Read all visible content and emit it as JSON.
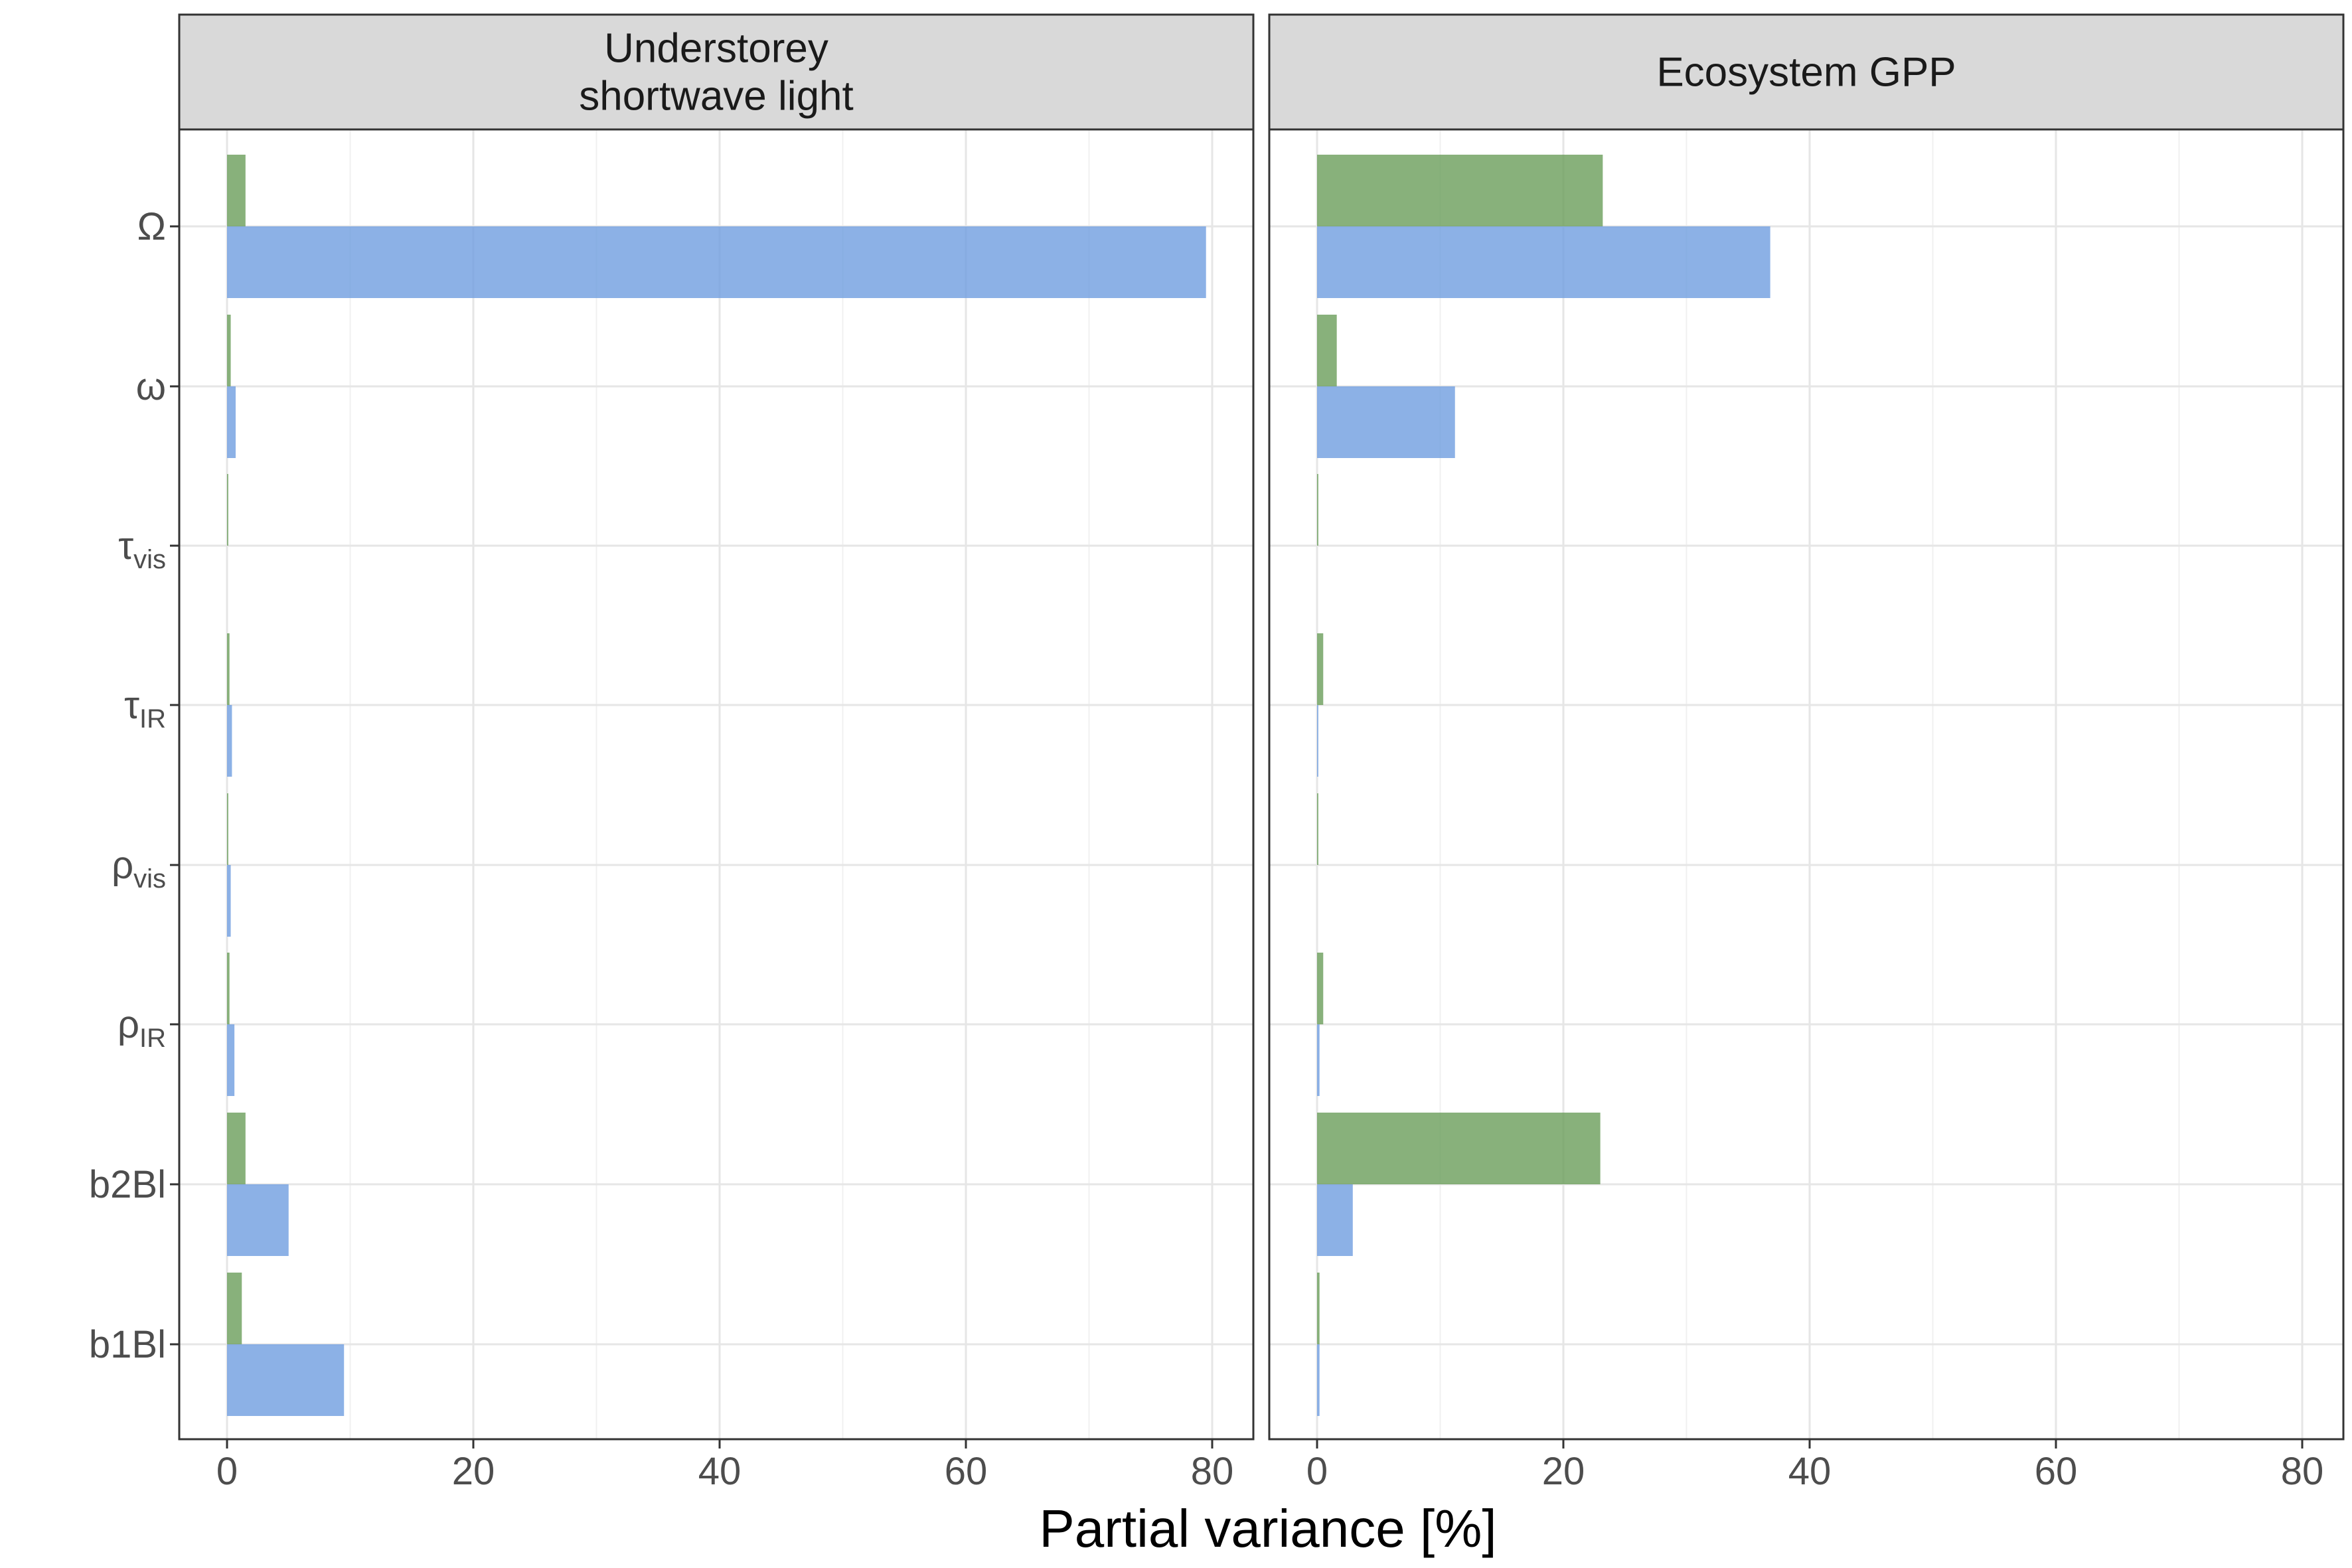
{
  "chart_data": {
    "type": "bar",
    "orientation": "horizontal",
    "xlabel": "Partial variance [%]",
    "xlim": [
      0,
      80
    ],
    "x_ticks": [
      "0",
      "20",
      "40",
      "60",
      "80"
    ],
    "grid": true,
    "categories": [
      {
        "base": "Ω",
        "sub": ""
      },
      {
        "base": "ω",
        "sub": ""
      },
      {
        "base": "τ",
        "sub": "vis"
      },
      {
        "base": "τ",
        "sub": "IR"
      },
      {
        "base": "ρ",
        "sub": "vis"
      },
      {
        "base": "ρ",
        "sub": "IR"
      },
      {
        "base": "b2Bl",
        "sub": ""
      },
      {
        "base": "b1Bl",
        "sub": ""
      }
    ],
    "series_colors": [
      "#6a9e5a",
      "#6f9de0"
    ],
    "facets": [
      {
        "title_lines": [
          "Understorey",
          "shortwave light"
        ],
        "series": [
          {
            "values": [
              1.5,
              0.3,
              0.1,
              0.2,
              0.1,
              0.2,
              1.5,
              1.2
            ]
          },
          {
            "values": [
              79.5,
              0.7,
              0.0,
              0.4,
              0.3,
              0.6,
              5.0,
              9.5
            ]
          }
        ]
      },
      {
        "title_lines": [
          "Ecosystem GPP"
        ],
        "series": [
          {
            "values": [
              23.2,
              1.6,
              0.1,
              0.5,
              0.1,
              0.5,
              23.0,
              0.2
            ]
          },
          {
            "values": [
              36.8,
              11.2,
              0.0,
              0.1,
              0.0,
              0.2,
              2.9,
              0.2
            ]
          }
        ]
      }
    ]
  }
}
